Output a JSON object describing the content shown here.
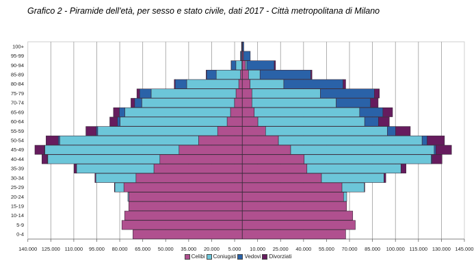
{
  "chart_data": {
    "type": "bar",
    "subtype": "population-pyramid",
    "title": "Grafico 2 - Piramide dell'età, per sesso e stato civile, dati 2017 - Città metropolitana di Milano",
    "categories": [
      "100+",
      "95-99",
      "90-94",
      "85-89",
      "80-84",
      "75-79",
      "70-74",
      "65-69",
      "60-64",
      "55-59",
      "50-54",
      "45-49",
      "40-44",
      "35-39",
      "30-34",
      "25-29",
      "20-24",
      "15-19",
      "10-14",
      "5-9",
      "0-4"
    ],
    "xticks": [
      {
        "value": -140000,
        "label": "140.000"
      },
      {
        "value": -125000,
        "label": "125.000"
      },
      {
        "value": -110000,
        "label": "110.000"
      },
      {
        "value": -95000,
        "label": "95.000"
      },
      {
        "value": -80000,
        "label": "80.000"
      },
      {
        "value": -65000,
        "label": "65.000"
      },
      {
        "value": -50000,
        "label": "50.000"
      },
      {
        "value": -35000,
        "label": "35.000"
      },
      {
        "value": -20000,
        "label": "20.000"
      },
      {
        "value": -5000,
        "label": "5.000"
      },
      {
        "value": 10000,
        "label": "10.000"
      },
      {
        "value": 25000,
        "label": "25.000"
      },
      {
        "value": 40000,
        "label": "40.000"
      },
      {
        "value": 55000,
        "label": "55.000"
      },
      {
        "value": 70000,
        "label": "70.000"
      },
      {
        "value": 85000,
        "label": "85.000"
      },
      {
        "value": 100000,
        "label": "100.000"
      },
      {
        "value": 115000,
        "label": "115.000"
      },
      {
        "value": 130000,
        "label": "130.000"
      },
      {
        "value": 145000,
        "label": "145.000"
      }
    ],
    "xlim": [
      -140000,
      145000
    ],
    "grid": true,
    "legend_position": "bottom",
    "series": [
      {
        "name": "Celibi",
        "color": "#b0508f",
        "left": [
          100,
          100,
          300,
          1200,
          2300,
          4100,
          5100,
          7700,
          9900,
          16100,
          28500,
          41300,
          53800,
          57700,
          69400,
          77300,
          74100,
          74100,
          76800,
          78600,
          71400
        ],
        "right": [
          200,
          700,
          2100,
          4100,
          5100,
          6300,
          6300,
          7800,
          10200,
          15200,
          23600,
          31600,
          40400,
          42200,
          51700,
          65100,
          66100,
          68100,
          72100,
          73800,
          67500
        ]
      },
      {
        "name": "Coniugati",
        "color": "#6cc6d9",
        "left": [
          100,
          400,
          3900,
          15800,
          34000,
          55400,
          60500,
          69000,
          69900,
          78300,
          90700,
          87600,
          73200,
          50500,
          26200,
          5900,
          600,
          0,
          0,
          0,
          0
        ],
        "right": [
          0,
          100,
          900,
          7500,
          22000,
          44700,
          55000,
          68800,
          69700,
          79500,
          93800,
          93700,
          83000,
          61400,
          40800,
          14600,
          2100,
          0,
          0,
          0,
          0
        ]
      },
      {
        "name": "Vedovi",
        "color": "#2a62a8",
        "left": [
          300,
          600,
          3000,
          6300,
          7500,
          7500,
          4700,
          3600,
          1700,
          900,
          900,
          300,
          300,
          100,
          0,
          0,
          0,
          0,
          0,
          0,
          0
        ],
        "right": [
          800,
          4400,
          17900,
          33100,
          38700,
          35200,
          22400,
          15200,
          9000,
          5400,
          3300,
          1100,
          500,
          100,
          0,
          0,
          0,
          0,
          0,
          0,
          0
        ]
      },
      {
        "name": "Divorziati",
        "color": "#661c5e",
        "left": [
          0,
          100,
          100,
          300,
          600,
          1800,
          2400,
          3800,
          5000,
          6800,
          8000,
          6200,
          3500,
          1500,
          600,
          300,
          0,
          0,
          0,
          0,
          0
        ],
        "right": [
          0,
          0,
          800,
          800,
          1700,
          3300,
          5000,
          6300,
          7100,
          9600,
          11300,
          10200,
          6500,
          3200,
          1200,
          300,
          0,
          0,
          0,
          0,
          0
        ]
      }
    ]
  }
}
